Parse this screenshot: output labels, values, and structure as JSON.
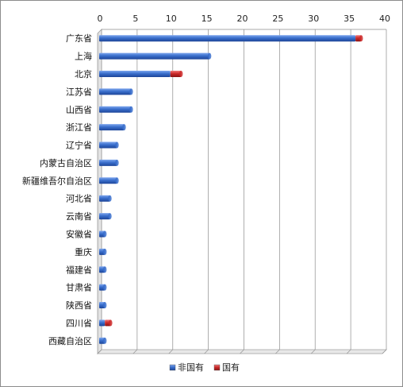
{
  "chart_data": {
    "type": "bar",
    "orientation": "horizontal",
    "stacked": true,
    "categories": [
      "广东省",
      "上海",
      "北京",
      "江苏省",
      "山西省",
      "浙江省",
      "辽宁省",
      "内蒙古自治区",
      "新疆维吾尔自治区",
      "河北省",
      "云南省",
      "安徽省",
      "重庆",
      "福建省",
      "甘肃省",
      "陕西省",
      "四川省",
      "西藏自治区"
    ],
    "series": [
      {
        "name": "非国有",
        "color": "#3a6fcc",
        "values": [
          36,
          15.5,
          10,
          4.5,
          4.5,
          3.5,
          2.5,
          2.5,
          2.5,
          1.5,
          1.5,
          0.8,
          0.8,
          0.8,
          0.8,
          0.8,
          0.8,
          0.8
        ]
      },
      {
        "name": "国有",
        "color": "#cc2a2a",
        "values": [
          0.8,
          0,
          1.5,
          0,
          0,
          0,
          0,
          0,
          0,
          0,
          0,
          0,
          0,
          0,
          0,
          0,
          0.8,
          0
        ]
      }
    ],
    "xlim": [
      0,
      40
    ],
    "xticks": [
      "0",
      "5",
      "10",
      "15",
      "20",
      "25",
      "30",
      "35",
      "40"
    ],
    "grid": true,
    "legend_position": "bottom",
    "title": "",
    "xlabel": "",
    "ylabel": ""
  }
}
